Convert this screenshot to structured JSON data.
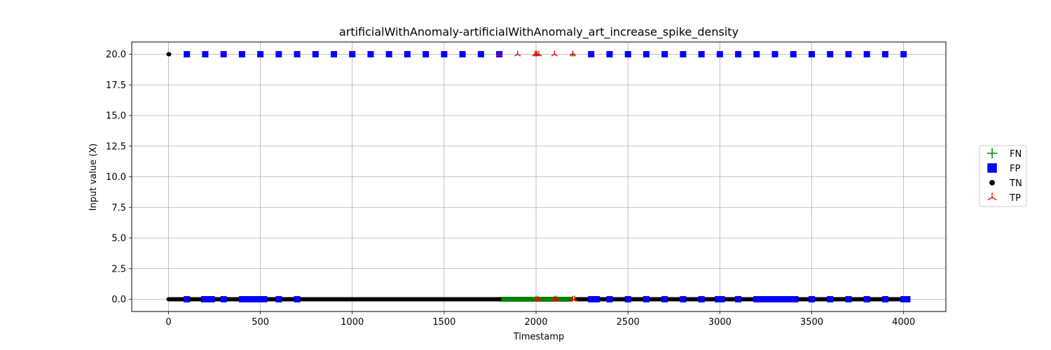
{
  "chart_data": {
    "type": "scatter",
    "title": "artificialWithAnomaly-artificialWithAnomaly_art_increase_spike_density",
    "xlabel": "Timestamp",
    "ylabel": "Input value (X)",
    "xlim": [
      -200,
      4230
    ],
    "ylim": [
      -1.0,
      21.0
    ],
    "xticks": [
      0,
      500,
      1000,
      1500,
      2000,
      2500,
      3000,
      3500,
      4000
    ],
    "yticks": [
      0.0,
      2.5,
      5.0,
      7.5,
      10.0,
      12.5,
      15.0,
      17.5,
      20.0
    ],
    "xtick_labels": [
      "0",
      "500",
      "1000",
      "1500",
      "2000",
      "2500",
      "3000",
      "3500",
      "4000"
    ],
    "ytick_labels": [
      "0.0",
      "2.5",
      "5.0",
      "7.5",
      "10.0",
      "12.5",
      "15.0",
      "17.5",
      "20.0"
    ],
    "grid": true,
    "legend_position": "right-center",
    "legend": [
      "FN",
      "FP",
      "TN",
      "TP"
    ],
    "series": [
      {
        "name": "TN",
        "marker": "circle",
        "color": "#000000",
        "baseline_segments": [
          [
            0,
            1800
          ],
          [
            2220,
            4024
          ]
        ],
        "points": [
          [
            0,
            20
          ],
          [
            4,
            20
          ],
          [
            400,
            0
          ],
          [
            530,
            0
          ],
          [
            1800,
            0
          ],
          [
            2300,
            0
          ],
          [
            3000,
            0
          ],
          [
            3200,
            0
          ],
          [
            3300,
            0
          ],
          [
            3420,
            0
          ],
          [
            4020,
            0
          ]
        ]
      },
      {
        "name": "FN",
        "marker": "plus",
        "color": "#008000",
        "baseline_segments": [
          [
            1800,
            2200
          ]
        ],
        "points": [
          [
            2000,
            20
          ],
          [
            2200,
            20
          ]
        ]
      },
      {
        "name": "FP",
        "marker": "square",
        "color": "#0000ff",
        "points": [
          [
            100,
            20
          ],
          [
            200,
            20
          ],
          [
            300,
            20
          ],
          [
            400,
            20
          ],
          [
            500,
            20
          ],
          [
            600,
            20
          ],
          [
            700,
            20
          ],
          [
            800,
            20
          ],
          [
            900,
            20
          ],
          [
            1000,
            20
          ],
          [
            1100,
            20
          ],
          [
            1200,
            20
          ],
          [
            1300,
            20
          ],
          [
            1400,
            20
          ],
          [
            1500,
            20
          ],
          [
            1600,
            20
          ],
          [
            1700,
            20
          ],
          [
            1800,
            20
          ],
          [
            2300,
            20
          ],
          [
            2400,
            20
          ],
          [
            2500,
            20
          ],
          [
            2600,
            20
          ],
          [
            2700,
            20
          ],
          [
            2800,
            20
          ],
          [
            2900,
            20
          ],
          [
            3000,
            20
          ],
          [
            3100,
            20
          ],
          [
            3200,
            20
          ],
          [
            3300,
            20
          ],
          [
            3400,
            20
          ],
          [
            3500,
            20
          ],
          [
            3600,
            20
          ],
          [
            3700,
            20
          ],
          [
            3800,
            20
          ],
          [
            3900,
            20
          ],
          [
            4000,
            20
          ],
          [
            100,
            0
          ],
          [
            200,
            0
          ],
          [
            220,
            0
          ],
          [
            300,
            0
          ],
          [
            600,
            0
          ],
          [
            700,
            0
          ],
          [
            2300,
            0
          ],
          [
            2330,
            0
          ],
          [
            2400,
            0
          ],
          [
            2500,
            0
          ],
          [
            2600,
            0
          ],
          [
            2700,
            0
          ],
          [
            2800,
            0
          ],
          [
            2900,
            0
          ],
          [
            3000,
            0
          ],
          [
            3100,
            0
          ],
          [
            3500,
            0
          ],
          [
            3600,
            0
          ],
          [
            3700,
            0
          ],
          [
            3800,
            0
          ],
          [
            3900,
            0
          ],
          [
            4000,
            0
          ],
          [
            4020,
            0
          ]
        ],
        "dense_ranges": [
          {
            "x": [
              400,
              520
            ],
            "y": 0
          },
          {
            "x": [
              3200,
              3410
            ],
            "y": 0
          },
          {
            "x": [
              2990,
              3010
            ],
            "y": 0
          },
          {
            "x": [
              195,
              235
            ],
            "y": 0
          }
        ]
      },
      {
        "name": "TP",
        "marker": "tri_down",
        "color": "#ff0000",
        "points": [
          [
            1800,
            20
          ],
          [
            1900,
            20
          ],
          [
            1995,
            20
          ],
          [
            2005,
            20
          ],
          [
            2015,
            20
          ],
          [
            2100,
            20
          ],
          [
            2200,
            20
          ],
          [
            2000,
            0
          ],
          [
            2010,
            0
          ],
          [
            2100,
            0
          ],
          [
            2110,
            0
          ],
          [
            2200,
            0
          ],
          [
            2210,
            0
          ]
        ]
      }
    ]
  }
}
